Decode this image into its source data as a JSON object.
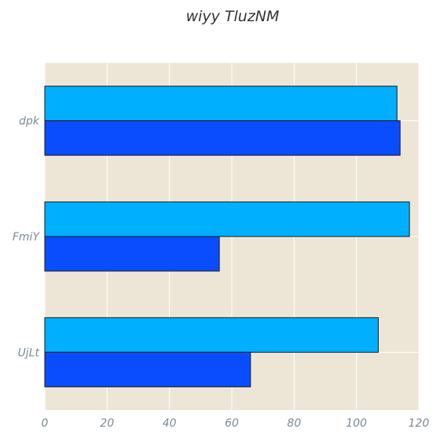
{
  "chart_data": {
    "type": "bar",
    "orientation": "horizontal",
    "title": "wiyy TluzNM",
    "xlabel": "",
    "ylabel": "",
    "categories": [
      "dpk",
      "FmiY",
      "UjLt"
    ],
    "series": [
      {
        "color": "#00b0ff",
        "values": [
          113,
          117,
          107
        ]
      },
      {
        "color": "#0a4dff",
        "values": [
          114,
          56,
          66
        ]
      }
    ],
    "xlim": [
      0,
      120
    ],
    "xticks": [
      0,
      20,
      40,
      60,
      80,
      100,
      120
    ],
    "grid": true,
    "plot_background": "#ede6d6",
    "grid_color": "#ffffff"
  }
}
